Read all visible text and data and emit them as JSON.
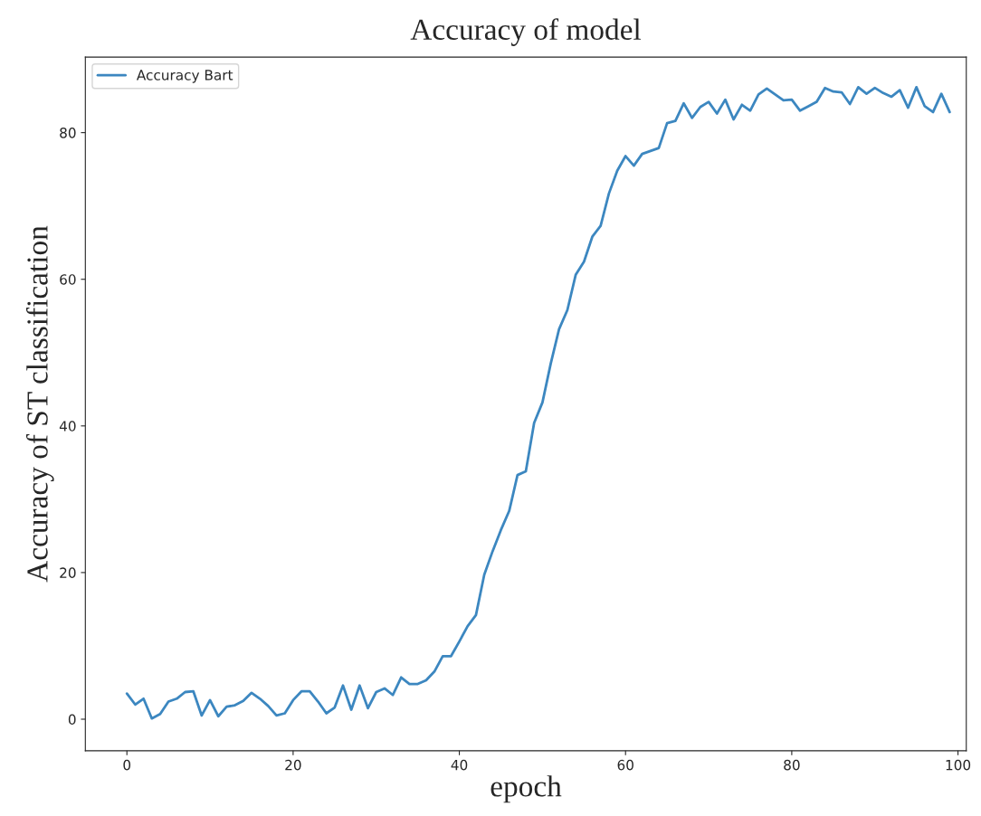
{
  "chart_data": {
    "type": "line",
    "title": "Accuracy of model",
    "xlabel": "epoch",
    "ylabel": "Accuracy of ST classification",
    "x": [
      0,
      1,
      2,
      3,
      4,
      5,
      6,
      7,
      8,
      9,
      10,
      11,
      12,
      13,
      14,
      15,
      16,
      17,
      18,
      19,
      20,
      21,
      22,
      23,
      24,
      25,
      26,
      27,
      28,
      29,
      30,
      31,
      32,
      33,
      34,
      35,
      36,
      37,
      38,
      39,
      40,
      41,
      42,
      43,
      44,
      45,
      46,
      47,
      48,
      49,
      50,
      51,
      52,
      53,
      54,
      55,
      56,
      57,
      58,
      59,
      60,
      61,
      62,
      63,
      64,
      65,
      66,
      67,
      68,
      69,
      70,
      71,
      72,
      73,
      74,
      75,
      76,
      77,
      78,
      79,
      80,
      81,
      82,
      83,
      84,
      85,
      86,
      87,
      88,
      89,
      90,
      91,
      92,
      93,
      94,
      95,
      96,
      97,
      98,
      99
    ],
    "series": [
      {
        "name": "Accuracy Bart",
        "color": "#3c87c0",
        "values": [
          3.5,
          2,
          2.8,
          0.1,
          0.7,
          2.4,
          2.8,
          3.7,
          3.8,
          0.5,
          2.6,
          0.4,
          1.7,
          1.9,
          2.5,
          3.6,
          2.8,
          1.8,
          0.5,
          0.8,
          2.6,
          3.8,
          3.8,
          2.4,
          0.8,
          1.6,
          4.6,
          1.3,
          4.6,
          1.5,
          3.7,
          4.2,
          3.3,
          5.7,
          4.8,
          4.8,
          5.3,
          6.5,
          8.6,
          8.6,
          10.6,
          12.7,
          14.2,
          19.7,
          22.9,
          25.8,
          28.4,
          33.3,
          33.8,
          40.4,
          43.2,
          48.5,
          53.2,
          55.8,
          60.6,
          62.4,
          65.8,
          67.3,
          71.7,
          74.8,
          76.8,
          75.5,
          77.1,
          77.5,
          77.9,
          81.3,
          81.6,
          84.0,
          82.0,
          83.5,
          84.2,
          82.6,
          84.5,
          81.8,
          83.8,
          83.0,
          85.2,
          86.0,
          85.2,
          84.4,
          84.5,
          83.0,
          83.6,
          84.2,
          86.1,
          85.6,
          85.5,
          83.9,
          86.2,
          85.3,
          86.1,
          85.4,
          84.9,
          85.8,
          83.4,
          86.2,
          83.6,
          82.8,
          85.3,
          82.8
        ]
      }
    ],
    "xlim": [
      -5,
      101
    ],
    "ylim": [
      -4.3,
      90.3
    ],
    "xticks": [
      0,
      20,
      40,
      60,
      80,
      100
    ],
    "yticks": [
      0,
      20,
      40,
      60,
      80
    ],
    "legend": "top left",
    "grid": false,
    "marker": "none",
    "line_style": "solid"
  }
}
